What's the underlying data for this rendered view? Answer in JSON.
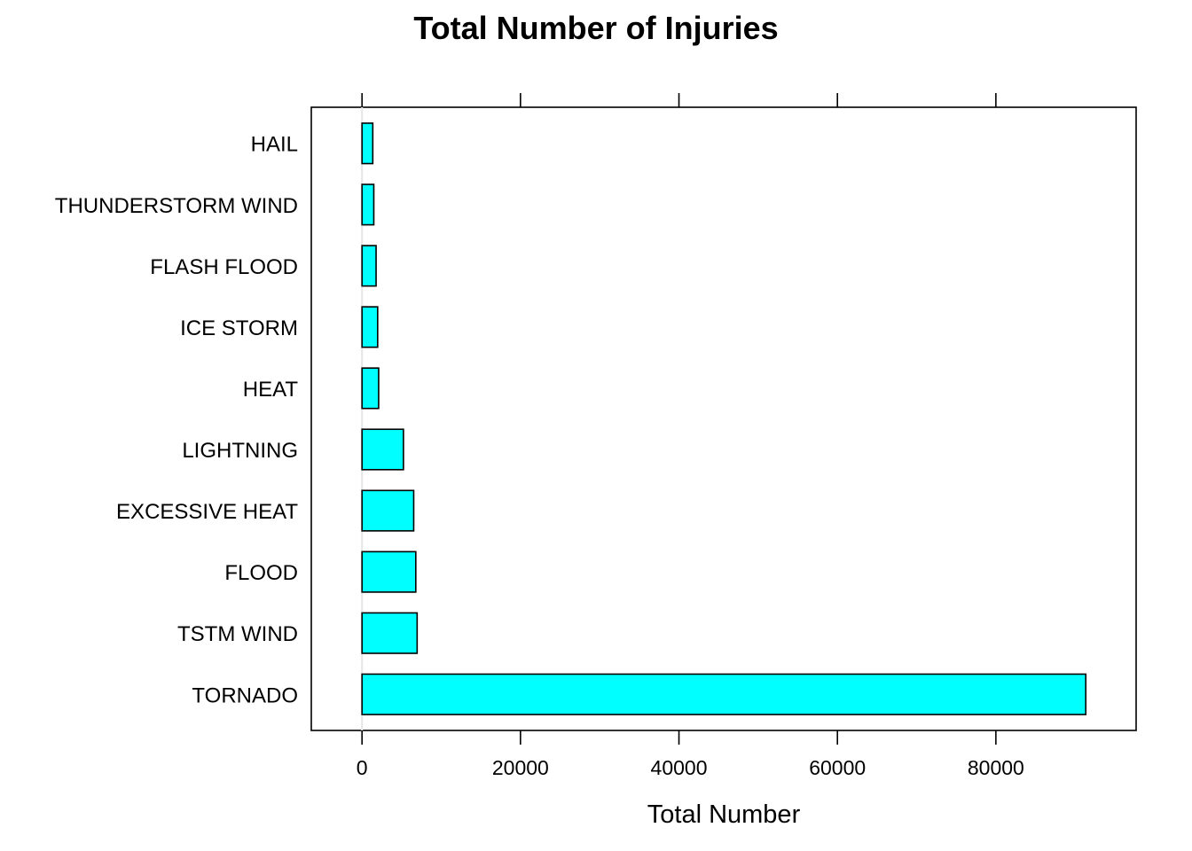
{
  "chart_data": {
    "type": "bar",
    "orientation": "horizontal",
    "title": "Total Number of Injuries",
    "xlabel": "Total Number",
    "ylabel": "",
    "categories": [
      "TORNADO",
      "TSTM WIND",
      "FLOOD",
      "EXCESSIVE HEAT",
      "LIGHTNING",
      "HEAT",
      "ICE STORM",
      "FLASH FLOOD",
      "THUNDERSTORM WIND",
      "HAIL"
    ],
    "values": [
      91346,
      6957,
      6789,
      6525,
      5230,
      2100,
      1975,
      1777,
      1488,
      1361
    ],
    "xlim": [
      -6400,
      97700
    ],
    "xticks": [
      0,
      20000,
      40000,
      60000,
      80000
    ],
    "xtick_labels": [
      "0",
      "20000",
      "40000",
      "60000",
      "80000"
    ],
    "grid": false,
    "bar_color": "#00ffff",
    "bar_edge_color": "#000000",
    "reference_line_color": "#e6e6e6"
  }
}
